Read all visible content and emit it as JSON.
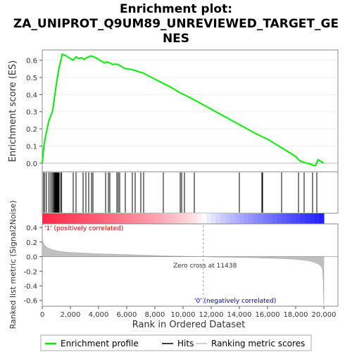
{
  "chart_data": {
    "type": "line",
    "title_lines": [
      "Enrichment plot:",
      "ZA_UNIPROT_Q9UM89_UNREVIEWED_TARGET_GE",
      "NES"
    ],
    "xlabel": "Rank in Ordered Dataset",
    "ylabel_top": "Enrichment score (ES)",
    "ylabel_bottom": "Ranked list metric (Signal2Noise)",
    "xlim": [
      0,
      21000
    ],
    "x_ticks": [
      0,
      2000,
      4000,
      6000,
      8000,
      10000,
      12000,
      14000,
      16000,
      18000,
      20000
    ],
    "x_tick_labels": [
      "0",
      "2,000",
      "4,000",
      "6,000",
      "8,000",
      "10,000",
      "12,000",
      "14,000",
      "16,000",
      "18,000",
      "20,000"
    ],
    "es_ylim": [
      -0.05,
      0.66
    ],
    "es_y_ticks": [
      0.0,
      0.1,
      0.2,
      0.3,
      0.4,
      0.5,
      0.6
    ],
    "es_y_tick_labels": [
      "0.0",
      "0.1",
      "0.2",
      "0.3",
      "0.4",
      "0.5",
      "0.6"
    ],
    "metric_ylim": [
      -0.68,
      0.45
    ],
    "metric_y_ticks": [
      0.4,
      0.2,
      0.0,
      -0.2,
      -0.4,
      -0.6
    ],
    "metric_y_tick_labels": [
      "0.4",
      "0.2",
      "0.0",
      "-0.2",
      "-0.4",
      "-0.6"
    ],
    "enrichment_profile": {
      "x": [
        0,
        60,
        120,
        200,
        320,
        420,
        520,
        620,
        720,
        800,
        880,
        950,
        1020,
        1100,
        1180,
        1260,
        1330,
        1420,
        1600,
        1800,
        2000,
        2200,
        2400,
        2600,
        2800,
        3000,
        3150,
        3300,
        3450,
        3600,
        3800,
        4000,
        4200,
        4400,
        4600,
        4800,
        5000,
        5200,
        5400,
        5600,
        5800,
        6000,
        6200,
        6400,
        6600,
        6800,
        7000,
        7200,
        7400,
        8000,
        8600,
        9200,
        9800,
        10200,
        11000,
        12000,
        13000,
        14000,
        15000,
        15600,
        16000,
        16500,
        17000,
        17500,
        18000,
        18200,
        18400,
        18600,
        18800,
        19000,
        19200,
        19400,
        19600,
        19800,
        20000
      ],
      "y": [
        0.0,
        0.05,
        0.1,
        0.14,
        0.19,
        0.23,
        0.26,
        0.28,
        0.3,
        0.34,
        0.39,
        0.43,
        0.47,
        0.51,
        0.55,
        0.58,
        0.6,
        0.635,
        0.63,
        0.62,
        0.61,
        0.6,
        0.62,
        0.61,
        0.615,
        0.605,
        0.615,
        0.62,
        0.625,
        0.622,
        0.615,
        0.605,
        0.595,
        0.585,
        0.59,
        0.585,
        0.575,
        0.578,
        0.575,
        0.565,
        0.555,
        0.55,
        0.548,
        0.545,
        0.54,
        0.535,
        0.53,
        0.525,
        0.515,
        0.49,
        0.465,
        0.44,
        0.41,
        0.395,
        0.36,
        0.315,
        0.27,
        0.225,
        0.18,
        0.155,
        0.14,
        0.115,
        0.09,
        0.065,
        0.04,
        0.02,
        0.01,
        0.005,
        0.0,
        -0.005,
        -0.01,
        -0.015,
        0.02,
        0.01,
        0.0
      ]
    },
    "hits": [
      80,
      180,
      300,
      480,
      600,
      700,
      780,
      850,
      900,
      950,
      1000,
      1050,
      1100,
      1150,
      1200,
      1300,
      1380,
      2200,
      2400,
      2900,
      3100,
      3300,
      3500,
      3600,
      4500,
      4700,
      4800,
      5300,
      5400,
      5500,
      5900,
      6400,
      6600,
      7000,
      7200,
      8600,
      9800,
      9900,
      10100,
      10800,
      14000,
      15600,
      15650,
      17000,
      18200,
      18600,
      19200,
      19500
    ],
    "zero_cross_label": "Zero cross at 11438",
    "zero_cross_x": 11438,
    "pos_label": "'1' (positively correlated)",
    "neg_label": "'0' (negatively correlated)",
    "metric_curve": {
      "x": [
        0,
        50,
        150,
        300,
        500,
        800,
        1200,
        1600,
        2000,
        3000,
        4000,
        5000,
        6000,
        7000,
        8000,
        9000,
        10000,
        11000,
        11438,
        12000,
        13000,
        14000,
        15000,
        16000,
        17000,
        17500,
        18000,
        18500,
        19000,
        19300,
        19600,
        19800,
        19900,
        19950,
        20000
      ],
      "y": [
        0.28,
        0.2,
        0.16,
        0.13,
        0.11,
        0.09,
        0.075,
        0.065,
        0.058,
        0.048,
        0.04,
        0.034,
        0.028,
        0.022,
        0.016,
        0.011,
        0.006,
        0.002,
        0.0,
        -0.003,
        -0.007,
        -0.011,
        -0.015,
        -0.02,
        -0.026,
        -0.03,
        -0.036,
        -0.045,
        -0.06,
        -0.075,
        -0.1,
        -0.13,
        -0.17,
        -0.3,
        -0.66
      ]
    },
    "legend": [
      "Enrichment profile",
      "Hits",
      "Ranking metric scores"
    ],
    "colors": {
      "profile": "#00ee00",
      "hits": "#000000",
      "metric_fill": "#c0c0c0",
      "pos_text": "#cc0000",
      "neg_text": "#0000cc",
      "zero_line": "#999999"
    }
  }
}
